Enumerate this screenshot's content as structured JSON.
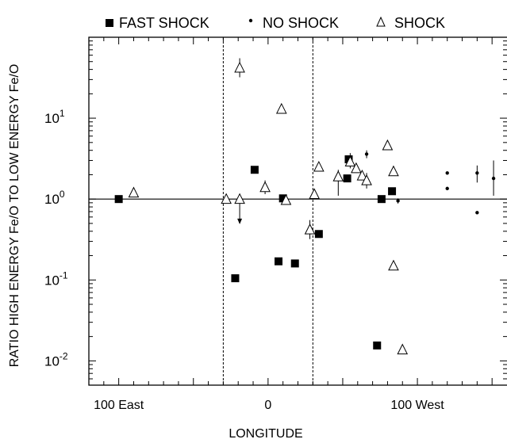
{
  "chart_data": {
    "type": "scatter",
    "title": "",
    "xlabel": "LONGITUDE",
    "ylabel": "RATIO HIGH ENERGY Fe/O TO LOW ENERGY Fe/O",
    "xscale": "linear",
    "yscale": "log",
    "xlim": [
      -120,
      160
    ],
    "ylim_log10": [
      -2.3,
      2.0
    ],
    "x_ticks": [
      {
        "value": -100,
        "label": "100 East"
      },
      {
        "value": 0,
        "label": "0"
      },
      {
        "value": 100,
        "label": "100 West"
      }
    ],
    "y_ticks": [
      {
        "exp": 1,
        "base": "10",
        "sup": "1"
      },
      {
        "exp": 0,
        "base": "10",
        "sup": "0"
      },
      {
        "exp": -1,
        "base": "10",
        "sup": "-1"
      },
      {
        "exp": -2,
        "base": "10",
        "sup": "-2"
      }
    ],
    "reference_line_y": 1.0,
    "vertical_dashed_lines_x": [
      -30,
      30
    ],
    "legend_position": "top",
    "series": [
      {
        "name": "FAST SHOCK",
        "marker": "filled-square",
        "points": [
          {
            "x": -100,
            "y": 1.0
          },
          {
            "x": -22,
            "y": 0.105
          },
          {
            "x": -9,
            "y": 2.3
          },
          {
            "x": 7,
            "y": 0.17
          },
          {
            "x": 10,
            "y": 1.02
          },
          {
            "x": 18,
            "y": 0.16
          },
          {
            "x": 34,
            "y": 0.37
          },
          {
            "x": 53,
            "y": 1.8
          },
          {
            "x": 54,
            "y": 3.1
          },
          {
            "x": 73,
            "y": 0.0155
          },
          {
            "x": 76,
            "y": 1.0
          },
          {
            "x": 83,
            "y": 1.25
          }
        ]
      },
      {
        "name": "NO SHOCK",
        "marker": "dot",
        "points": [
          {
            "x": 66,
            "y": 3.6,
            "err_low": 3.2,
            "err_high": 4.0
          },
          {
            "x": 87,
            "y": 0.95,
            "err_low": 0.88,
            "err_high": 1.02
          },
          {
            "x": 120,
            "y": 2.1
          },
          {
            "x": 120,
            "y": 1.35
          },
          {
            "x": 140,
            "y": 2.1,
            "err_low": 1.6,
            "err_high": 2.6
          },
          {
            "x": 140,
            "y": 0.68
          },
          {
            "x": 151,
            "y": 1.8,
            "err_low": 1.1,
            "err_high": 3.0
          }
        ]
      },
      {
        "name": "SHOCK",
        "marker": "open-triangle",
        "points": [
          {
            "x": -90,
            "y": 1.2
          },
          {
            "x": -28,
            "y": 1.0
          },
          {
            "x": -19,
            "y": 42,
            "err_low": 32,
            "err_high": 55
          },
          {
            "x": -19,
            "y": 1.0,
            "upper_limit_to": 0.5
          },
          {
            "x": -2,
            "y": 1.4,
            "err_low": 1.15,
            "err_high": 1.7
          },
          {
            "x": 9,
            "y": 13
          },
          {
            "x": 12,
            "y": 0.97
          },
          {
            "x": 28,
            "y": 0.42,
            "err_low": 0.32,
            "err_high": 0.55
          },
          {
            "x": 31,
            "y": 1.15
          },
          {
            "x": 34,
            "y": 2.5
          },
          {
            "x": 47,
            "y": 1.9,
            "err_low": 1.1,
            "err_high": 2.3
          },
          {
            "x": 55,
            "y": 2.9,
            "err_low": 2.4,
            "err_high": 3.7
          },
          {
            "x": 59,
            "y": 2.4
          },
          {
            "x": 63,
            "y": 1.95
          },
          {
            "x": 66,
            "y": 1.7,
            "err_low": 1.35,
            "err_high": 2.1
          },
          {
            "x": 80,
            "y": 4.6
          },
          {
            "x": 84,
            "y": 2.2
          },
          {
            "x": 84,
            "y": 0.15
          },
          {
            "x": 90,
            "y": 0.0138
          }
        ]
      }
    ]
  }
}
